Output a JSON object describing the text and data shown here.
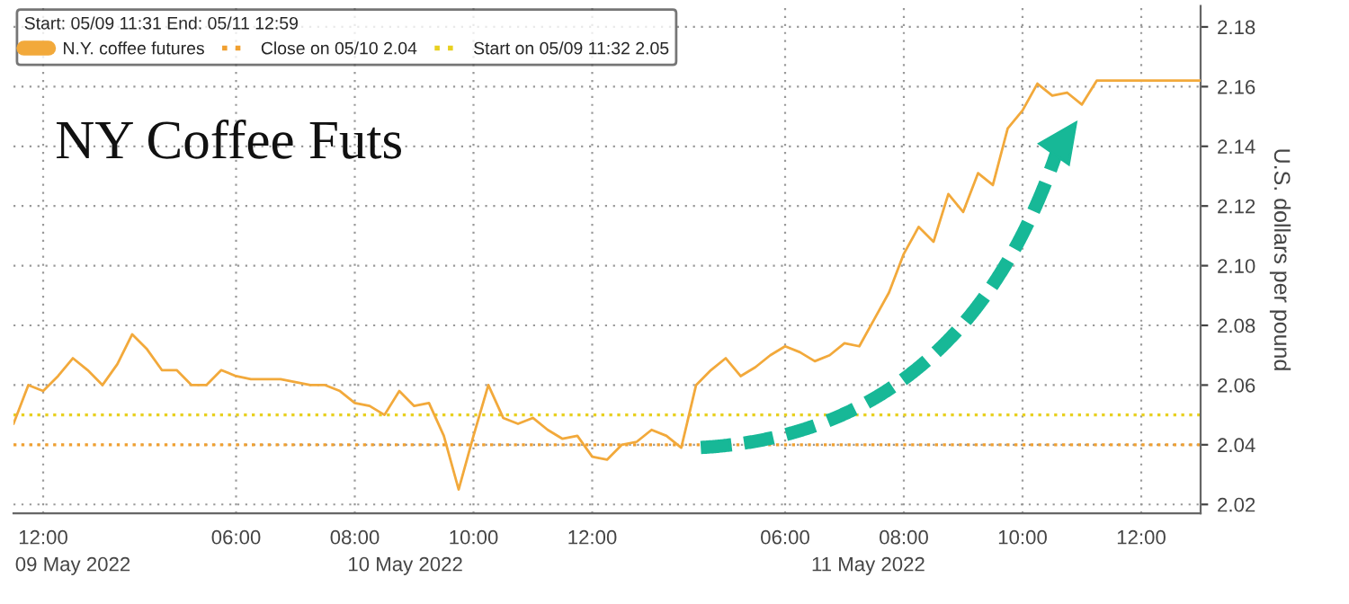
{
  "chart_data": {
    "type": "line",
    "title": "NY Coffee Futs",
    "legend_title": "Start: 05/09 11:31 End: 05/11 12:59",
    "ylabel": "U.S. dollars per pound",
    "annotations": [
      "09 May 2022",
      "10 May 2022",
      "11 May 2022"
    ],
    "categories": [
      null,
      null,
      "12:00",
      null,
      null,
      null,
      null,
      null,
      null,
      null,
      null,
      null,
      null,
      null,
      null,
      "06:00",
      null,
      null,
      null,
      null,
      null,
      null,
      null,
      "08:00",
      null,
      null,
      null,
      null,
      null,
      null,
      null,
      "10:00",
      null,
      null,
      null,
      null,
      null,
      null,
      null,
      "12:00",
      null,
      null,
      null,
      null,
      null,
      null,
      null,
      null,
      null,
      null,
      null,
      null,
      "06:00",
      null,
      null,
      null,
      null,
      null,
      null,
      null,
      "08:00",
      null,
      null,
      null,
      null,
      null,
      null,
      null,
      "10:00",
      null,
      null,
      null,
      null,
      null,
      null,
      null,
      "12:00",
      null,
      null,
      null,
      null
    ],
    "series": [
      {
        "name": "N.Y. coffee futures",
        "color": "#f2a93b",
        "values": [
          2.047,
          2.06,
          2.058,
          2.063,
          2.069,
          2.065,
          2.06,
          2.067,
          2.077,
          2.072,
          2.065,
          2.065,
          2.06,
          2.06,
          2.065,
          2.063,
          2.062,
          2.062,
          2.062,
          2.061,
          2.06,
          2.06,
          2.058,
          2.054,
          2.053,
          2.05,
          2.058,
          2.053,
          2.054,
          2.043,
          2.025,
          2.043,
          2.06,
          2.049,
          2.047,
          2.049,
          2.045,
          2.042,
          2.043,
          2.036,
          2.035,
          2.04,
          2.041,
          2.045,
          2.043,
          2.039,
          2.06,
          2.065,
          2.069,
          2.063,
          2.066,
          2.07,
          2.073,
          2.071,
          2.068,
          2.07,
          2.074,
          2.073,
          2.082,
          2.091,
          2.104,
          2.113,
          2.108,
          2.124,
          2.118,
          2.131,
          2.127,
          2.146,
          2.152,
          2.161,
          2.157,
          2.158,
          2.154,
          2.162,
          2.162,
          2.162,
          2.162,
          2.162,
          2.162,
          2.162,
          2.162
        ]
      }
    ],
    "ref_lines": [
      {
        "axis": "y",
        "value": 2.04,
        "label": "Close on 05/10 2.04",
        "color": "#f0a030",
        "line_style": "dotted"
      },
      {
        "axis": "y",
        "value": 2.05,
        "label": "Start on 05/09 11:32 2.05",
        "color": "#e8d020",
        "line_style": "dotted"
      }
    ],
    "ylim": [
      2.017,
      2.187
    ],
    "yticks": [
      2.02,
      2.04,
      2.06,
      2.08,
      {
        "value": 2.1,
        "label": "2.10"
      },
      2.12,
      2.14,
      2.16,
      2.18
    ],
    "grid": true,
    "legend": "top left",
    "marker": "none",
    "line_style": "solid"
  }
}
